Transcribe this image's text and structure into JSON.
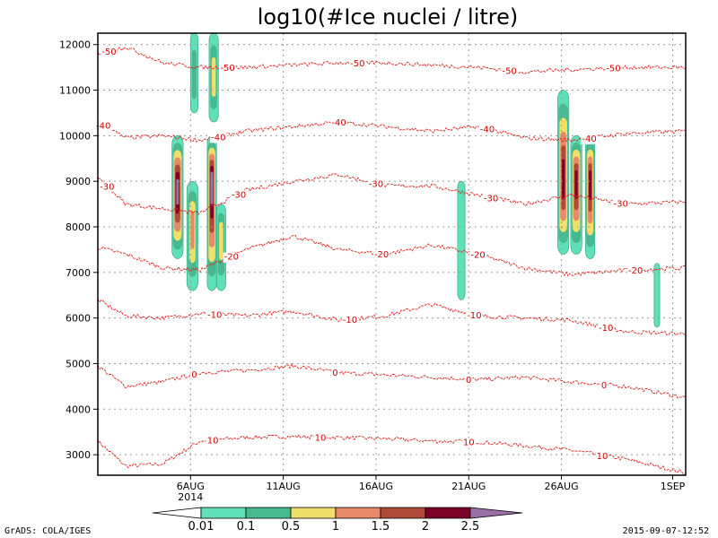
{
  "chart_data": {
    "type": "heatmap",
    "title": "log10(#Ice nuclei / litre)",
    "xlim": [
      1.0,
      32.7
    ],
    "ylim": [
      2550,
      12250
    ],
    "y_ticks": [
      3000,
      4000,
      5000,
      6000,
      7000,
      8000,
      9000,
      10000,
      11000,
      12000
    ],
    "x_ticks": [
      {
        "day": 6,
        "label": "6AUG",
        "sublabel": "2014"
      },
      {
        "day": 11,
        "label": "11AUG",
        "sublabel": ""
      },
      {
        "day": 16,
        "label": "16AUG",
        "sublabel": ""
      },
      {
        "day": 21,
        "label": "21AUG",
        "sublabel": ""
      },
      {
        "day": 26,
        "label": "26AUG",
        "sublabel": ""
      },
      {
        "day": 32,
        "label": "1SEP",
        "sublabel": ""
      }
    ],
    "grid": true,
    "colorbar": {
      "levels": [
        "0.01",
        "0.1",
        "0.5",
        "1",
        "1.5",
        "2",
        "2.5"
      ],
      "colors": [
        "#ffffff",
        "#5fe0b8",
        "#47b98e",
        "#f0e06a",
        "#e8896a",
        "#b04a38",
        "#7a0028",
        "#9a6fa8"
      ]
    },
    "temperature_contours": [
      {
        "label": "10",
        "y": [
          3300,
          2750,
          2800,
          3300,
          3380,
          3400,
          3380,
          3350,
          3300,
          3280,
          3200,
          3100,
          2900,
          2600
        ]
      },
      {
        "label": "0",
        "y": [
          4950,
          4500,
          4600,
          4800,
          4850,
          4950,
          4800,
          4750,
          4700,
          4650,
          4700,
          4600,
          4500,
          4250
        ]
      },
      {
        "label": "-10",
        "y": [
          6400,
          6050,
          6000,
          6100,
          6050,
          6150,
          5950,
          6050,
          6300,
          6050,
          6000,
          5950,
          5700,
          5650
        ]
      },
      {
        "label": "-20",
        "y": [
          7550,
          7400,
          7100,
          7050,
          7500,
          7800,
          7500,
          7400,
          7600,
          7400,
          7100,
          6950,
          7050,
          7100
        ]
      },
      {
        "label": "-30",
        "y": [
          9100,
          8500,
          8400,
          8300,
          8800,
          9000,
          9150,
          8900,
          8900,
          8700,
          8500,
          8700,
          8500,
          8550
        ]
      },
      {
        "label": "-40",
        "y": [
          10300,
          9950,
          10000,
          9900,
          10100,
          10200,
          10300,
          10200,
          10100,
          10200,
          9950,
          9900,
          10050,
          10100
        ]
      },
      {
        "label": "-50",
        "y": [
          11800,
          11950,
          11600,
          11500,
          11500,
          11550,
          11600,
          11600,
          11550,
          11500,
          11400,
          11450,
          11500,
          11500
        ]
      }
    ],
    "contour_x": [
      1.0,
      2.5,
      4.5,
      6.5,
      9.0,
      11.5,
      14.0,
      16.5,
      19.0,
      21.5,
      24.0,
      26.5,
      29.5,
      32.7
    ],
    "contour_labels": [
      {
        "curve": "10",
        "x": [
          7.2,
          13.0,
          21.0,
          28.2
        ]
      },
      {
        "curve": "0",
        "x": [
          6.2,
          13.8,
          21.0,
          28.3
        ]
      },
      {
        "curve": "-10",
        "x": [
          7.3,
          14.6,
          21.3,
          28.4
        ]
      },
      {
        "curve": "-20",
        "x": [
          8.2,
          16.3,
          21.5,
          30.0
        ]
      },
      {
        "curve": "-30",
        "x": [
          1.5,
          8.6,
          16.0,
          22.2,
          29.2
        ]
      },
      {
        "curve": "-40",
        "x": [
          1.3,
          7.5,
          14.0,
          22.0,
          27.5
        ]
      },
      {
        "curve": "-50",
        "x": [
          1.6,
          8.0,
          15.0,
          23.2,
          28.8
        ]
      }
    ],
    "ice_cells": [
      {
        "x1": 5.0,
        "x2": 5.6,
        "y1": 7300,
        "y2": 10000,
        "peak": 7,
        "peak_y": 8800
      },
      {
        "x1": 5.8,
        "x2": 6.4,
        "y1": 6600,
        "y2": 9000,
        "peak": 4,
        "peak_y": 8000
      },
      {
        "x1": 6.9,
        "x2": 7.4,
        "y1": 6600,
        "y2": 10000,
        "peak": 7,
        "peak_y": 9000
      },
      {
        "x1": 7.4,
        "x2": 7.9,
        "y1": 6600,
        "y2": 8500,
        "peak": 3,
        "peak_y": 7800
      },
      {
        "x1": 6.0,
        "x2": 6.4,
        "y1": 10500,
        "y2": 12250,
        "peak": 2,
        "peak_y": 11300
      },
      {
        "x1": 7.0,
        "x2": 7.5,
        "y1": 10300,
        "y2": 12250,
        "peak": 3,
        "peak_y": 11300
      },
      {
        "x1": 20.4,
        "x2": 20.8,
        "y1": 6400,
        "y2": 9000,
        "peak": 1,
        "peak_y": 7700
      },
      {
        "x1": 25.8,
        "x2": 26.4,
        "y1": 7400,
        "y2": 11000,
        "peak": 6,
        "peak_y": 9000
      },
      {
        "x1": 26.5,
        "x2": 27.1,
        "y1": 7400,
        "y2": 10000,
        "peak": 6,
        "peak_y": 9000
      },
      {
        "x1": 27.3,
        "x2": 27.8,
        "y1": 7300,
        "y2": 10000,
        "peak": 6,
        "peak_y": 9000
      },
      {
        "x1": 31.0,
        "x2": 31.3,
        "y1": 5800,
        "y2": 7200,
        "peak": 1,
        "peak_y": 6500
      }
    ]
  },
  "footer": {
    "left": "GrADS: COLA/IGES",
    "right": "2015-09-07-12:52"
  }
}
